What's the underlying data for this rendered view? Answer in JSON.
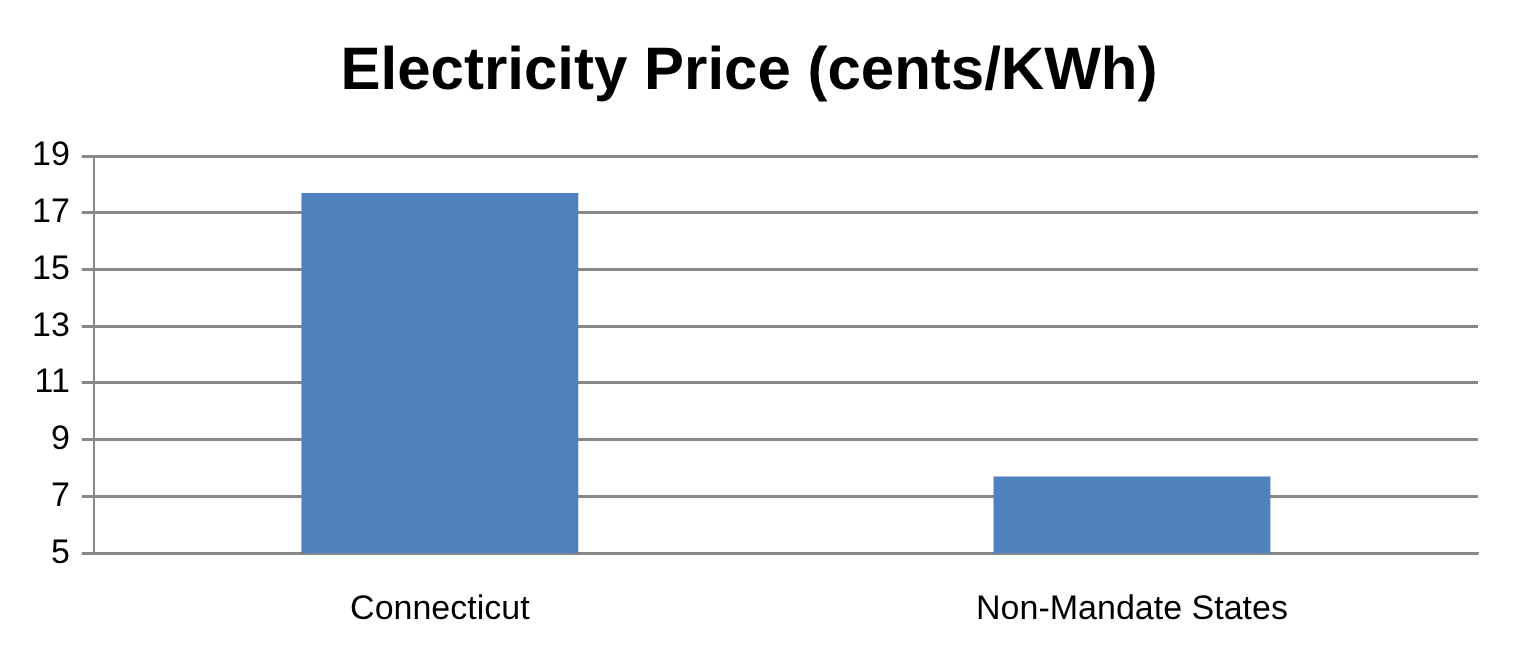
{
  "chart_data": {
    "type": "bar",
    "title": "Electricity Price (cents/KWh)",
    "categories": [
      "Connecticut",
      "Non-Mandate States"
    ],
    "values": [
      17.7,
      7.7
    ],
    "color": "#4f81bd",
    "ylim": [
      5,
      19
    ],
    "yticks": [
      5,
      7,
      9,
      11,
      13,
      15,
      17,
      19
    ],
    "grid": "y"
  }
}
